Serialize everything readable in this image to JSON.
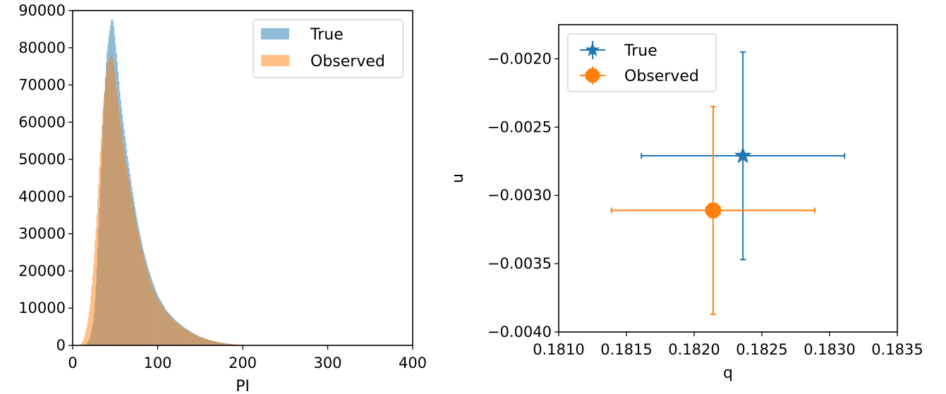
{
  "chart_data": [
    {
      "type": "histogram",
      "xlabel": "PI",
      "ylabel": "",
      "xlim": [
        0,
        400
      ],
      "ylim": [
        0,
        90000
      ],
      "xticks": [
        0,
        100,
        200,
        300,
        400
      ],
      "yticks": [
        0,
        10000,
        20000,
        30000,
        40000,
        50000,
        60000,
        70000,
        80000,
        90000
      ],
      "legend": {
        "position": "top-right"
      },
      "series": [
        {
          "name": "True",
          "color": "#1f77b4",
          "x": [
            10,
            15,
            20,
            25,
            28,
            32,
            36,
            40,
            43,
            46,
            48,
            50,
            53,
            56,
            60,
            65,
            70,
            75,
            80,
            85,
            90,
            95,
            100,
            110,
            120,
            130,
            140,
            150,
            160,
            170,
            180,
            190,
            200,
            210,
            220
          ],
          "values": [
            0,
            200,
            1500,
            7000,
            18000,
            40000,
            62000,
            78000,
            84000,
            88000,
            87000,
            82000,
            75000,
            67000,
            59000,
            50000,
            42000,
            35000,
            29000,
            24000,
            20000,
            16500,
            13500,
            9500,
            7000,
            5000,
            3500,
            2300,
            1500,
            900,
            500,
            250,
            100,
            40,
            0
          ]
        },
        {
          "name": "Observed",
          "color": "#ff7f0e",
          "x": [
            8,
            12,
            16,
            20,
            24,
            28,
            32,
            36,
            40,
            43,
            46,
            48,
            50,
            53,
            56,
            60,
            65,
            70,
            75,
            80,
            85,
            90,
            95,
            100,
            110,
            120,
            130,
            140,
            150,
            160,
            170,
            180,
            190,
            200,
            210,
            220
          ],
          "values": [
            0,
            1000,
            4000,
            9500,
            20000,
            33000,
            50000,
            65000,
            74000,
            77000,
            78000,
            76000,
            72000,
            66000,
            60000,
            53000,
            46000,
            39000,
            33000,
            27500,
            22500,
            18500,
            15000,
            12500,
            9000,
            6500,
            4800,
            3400,
            2300,
            1500,
            900,
            550,
            280,
            120,
            40,
            0
          ]
        }
      ]
    },
    {
      "type": "errorbar",
      "xlabel": "q",
      "ylabel": "u",
      "xlim": [
        0.181,
        0.1835
      ],
      "ylim": [
        -0.004,
        -0.00175
      ],
      "xticks": [
        0.181,
        0.1815,
        0.182,
        0.1825,
        0.183,
        0.1835
      ],
      "xtick_labels": [
        "0.1810",
        "0.1815",
        "0.1820",
        "0.1825",
        "0.1830",
        "0.1835"
      ],
      "yticks": [
        -0.004,
        -0.0035,
        -0.003,
        -0.0025,
        -0.002
      ],
      "ytick_labels": [
        "−0.0040",
        "−0.0035",
        "−0.0030",
        "−0.0025",
        "−0.0020"
      ],
      "legend": {
        "position": "top-left"
      },
      "series": [
        {
          "name": "True",
          "color": "#1f77b4",
          "marker": "star",
          "x": 0.18236,
          "y": -0.00271,
          "xerr": 0.00075,
          "yerr": 0.00076
        },
        {
          "name": "Observed",
          "color": "#ff7f0e",
          "marker": "octagon",
          "x": 0.18214,
          "y": -0.00311,
          "xerr": 0.00075,
          "yerr": 0.00076
        }
      ]
    }
  ]
}
